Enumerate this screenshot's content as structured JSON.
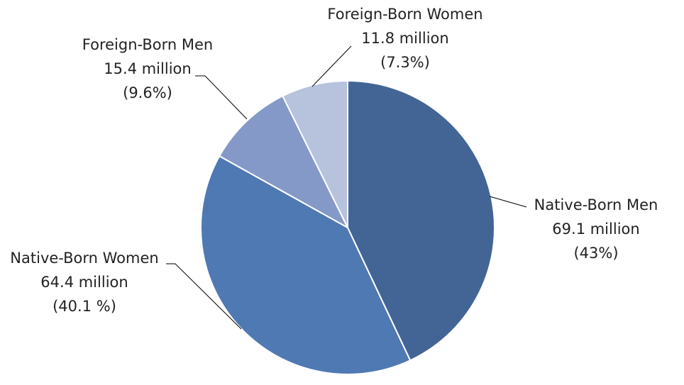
{
  "chart_data": {
    "type": "pie",
    "title": "",
    "slices": [
      {
        "name": "Native-Born Men",
        "value_label": "69.1 million",
        "percent_label": "(43%)",
        "value": 69.1,
        "percent": 43.0,
        "color": "#436596"
      },
      {
        "name": "Native-Born Women",
        "value_label": "64.4 million",
        "percent_label": "(40.1 %)",
        "value": 64.4,
        "percent": 40.1,
        "color": "#4f79b3"
      },
      {
        "name": "Foreign-Born Men",
        "value_label": "15.4 million",
        "percent_label": "(9.6%)",
        "value": 15.4,
        "percent": 9.6,
        "color": "#8599c9"
      },
      {
        "name": "Foreign-Born Women",
        "value_label": "11.8 million",
        "percent_label": "(7.3%)",
        "value": 11.8,
        "percent": 7.3,
        "color": "#b7c2dd"
      }
    ],
    "start": "12 o'clock",
    "direction": "clockwise",
    "legend": "none"
  }
}
